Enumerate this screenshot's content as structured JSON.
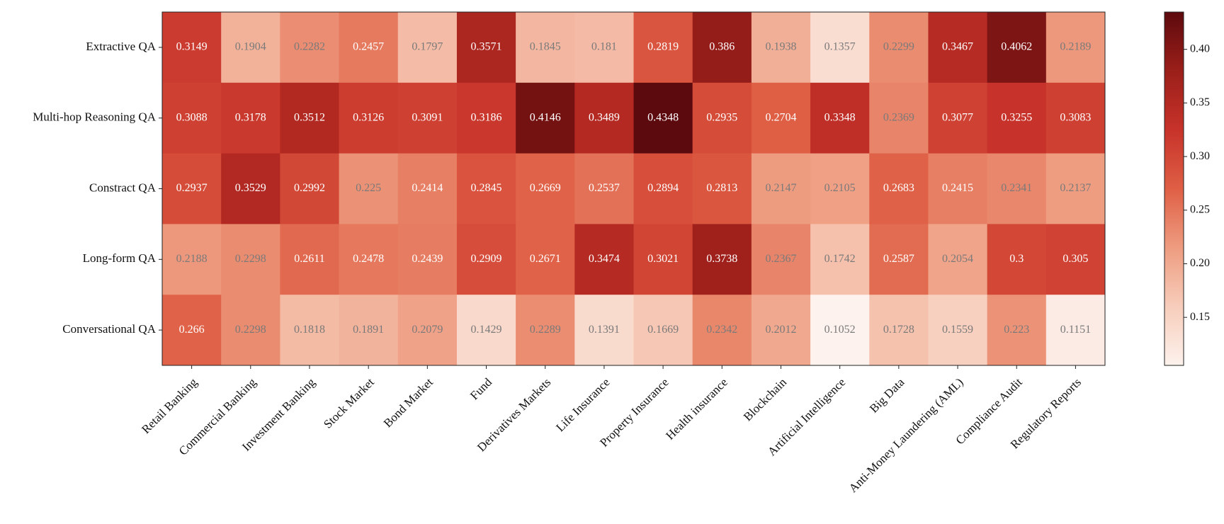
{
  "chart_data": {
    "type": "heatmap",
    "x_categories": [
      "Retail Banking",
      "Commercial Banking",
      "Investment Banking",
      "Stock Market",
      "Bond Market",
      "Fund",
      "Derivatives Markets",
      "Life Insurance",
      "Property Insurance",
      "Health insurance",
      "Blockchain",
      "Artificial Intelligence",
      "Big Data",
      "Anti-Money Laundering (AML)",
      "Compliance Audit",
      "Regulatory Reports"
    ],
    "y_categories": [
      "Extractive QA",
      "Multi-hop Reasoning QA",
      "Constract QA",
      "Long-form QA",
      "Conversational QA"
    ],
    "values": [
      [
        0.3149,
        0.1904,
        0.2282,
        0.2457,
        0.1797,
        0.3571,
        0.1845,
        0.181,
        0.2819,
        0.386,
        0.1938,
        0.1357,
        0.2299,
        0.3467,
        0.4062,
        0.2189
      ],
      [
        0.3088,
        0.3178,
        0.3512,
        0.3126,
        0.3091,
        0.3186,
        0.4146,
        0.3489,
        0.4348,
        0.2935,
        0.2704,
        0.3348,
        0.2369,
        0.3077,
        0.3255,
        0.3083
      ],
      [
        0.2937,
        0.3529,
        0.2992,
        0.225,
        0.2414,
        0.2845,
        0.2669,
        0.2537,
        0.2894,
        0.2813,
        0.2147,
        0.2105,
        0.2683,
        0.2415,
        0.2341,
        0.2137
      ],
      [
        0.2188,
        0.2298,
        0.2611,
        0.2478,
        0.2439,
        0.2909,
        0.2671,
        0.3474,
        0.3021,
        0.3738,
        0.2367,
        0.1742,
        0.2587,
        0.2054,
        0.3,
        0.305
      ],
      [
        0.266,
        0.2298,
        0.1818,
        0.1891,
        0.2079,
        0.1429,
        0.2289,
        0.1391,
        0.1669,
        0.2342,
        0.2012,
        0.1052,
        0.1728,
        0.1559,
        0.223,
        0.1151
      ]
    ],
    "colormap": [
      "#fdf2ed",
      "#f7cdbb",
      "#ee9c80",
      "#df5f45",
      "#c7332a",
      "#9b1f1a",
      "#5d0a0e"
    ],
    "colorbar_lim": [
      0.1052,
      0.4348
    ],
    "colorbar_ticks": [
      0.15,
      {
        "value": 0.2,
        "label": "0.20"
      },
      0.25,
      {
        "value": 0.3,
        "label": "0.30"
      },
      0.35,
      {
        "value": 0.4,
        "label": "0.40"
      }
    ]
  }
}
